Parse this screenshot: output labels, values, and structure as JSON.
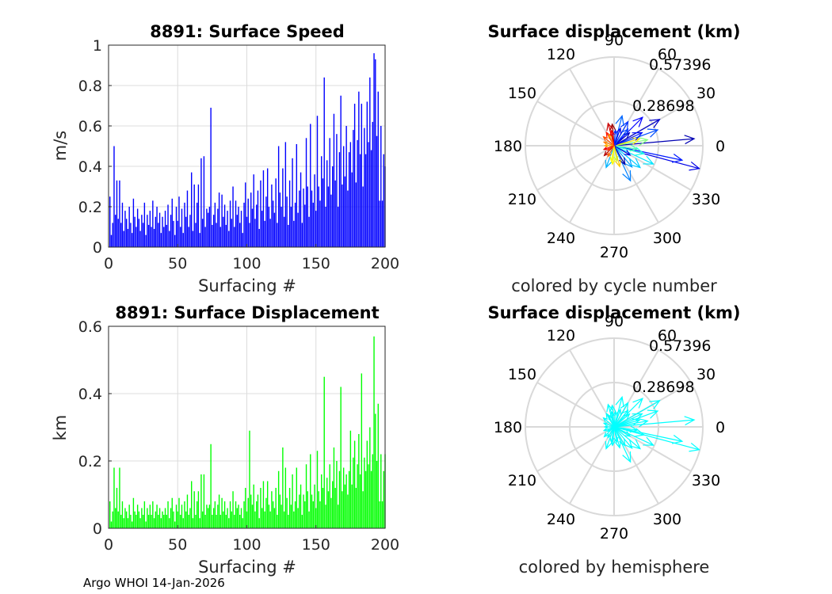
{
  "footer": "Argo WHOI 14-Jan-2026",
  "chart_data": [
    {
      "type": "bar",
      "id": "speed",
      "title": "8891: Surface Speed",
      "xlabel": "Surfacing #",
      "ylabel": "m/s",
      "xlim": [
        0,
        200
      ],
      "ylim": [
        0,
        1
      ],
      "xticks": [
        "0",
        "50",
        "100",
        "150",
        "200"
      ],
      "yticks": [
        "0",
        "0.2",
        "0.4",
        "0.6",
        "0.8",
        "1"
      ],
      "color": "#0000ff",
      "grid": true,
      "x": [
        1,
        2,
        3,
        4,
        5,
        6,
        7,
        8,
        9,
        10,
        11,
        12,
        13,
        14,
        15,
        16,
        17,
        18,
        19,
        20,
        21,
        22,
        23,
        24,
        25,
        26,
        27,
        28,
        29,
        30,
        31,
        32,
        33,
        34,
        35,
        36,
        37,
        38,
        39,
        40,
        41,
        42,
        43,
        44,
        45,
        46,
        47,
        48,
        49,
        50,
        51,
        52,
        53,
        54,
        55,
        56,
        57,
        58,
        59,
        60,
        61,
        62,
        63,
        64,
        65,
        66,
        67,
        68,
        69,
        70,
        71,
        72,
        73,
        74,
        75,
        76,
        77,
        78,
        79,
        80,
        81,
        82,
        83,
        84,
        85,
        86,
        87,
        88,
        89,
        90,
        91,
        92,
        93,
        94,
        95,
        96,
        97,
        98,
        99,
        100,
        101,
        102,
        103,
        104,
        105,
        106,
        107,
        108,
        109,
        110,
        111,
        112,
        113,
        114,
        115,
        116,
        117,
        118,
        119,
        120,
        121,
        122,
        123,
        124,
        125,
        126,
        127,
        128,
        129,
        130,
        131,
        132,
        133,
        134,
        135,
        136,
        137,
        138,
        139,
        140,
        141,
        142,
        143,
        144,
        145,
        146,
        147,
        148,
        149,
        150,
        151,
        152,
        153,
        154,
        155,
        156,
        157,
        158,
        159,
        160,
        161,
        162,
        163,
        164,
        165,
        166,
        167,
        168,
        169,
        170,
        171,
        172,
        173,
        174,
        175,
        176,
        177,
        178,
        179,
        180,
        181,
        182,
        183,
        184,
        185,
        186,
        187,
        188,
        189,
        190,
        191,
        192,
        193,
        194,
        195,
        196,
        197,
        198,
        199,
        200
      ],
      "values": [
        0.25,
        0.06,
        0.12,
        0.5,
        0.16,
        0.33,
        0.14,
        0.33,
        0.12,
        0.22,
        0.08,
        0.18,
        0.14,
        0.09,
        0.2,
        0.12,
        0.07,
        0.24,
        0.15,
        0.1,
        0.19,
        0.14,
        0.08,
        0.16,
        0.12,
        0.22,
        0.06,
        0.16,
        0.11,
        0.18,
        0.1,
        0.23,
        0.09,
        0.15,
        0.2,
        0.12,
        0.17,
        0.07,
        0.15,
        0.1,
        0.18,
        0.11,
        0.21,
        0.08,
        0.16,
        0.24,
        0.13,
        0.06,
        0.2,
        0.13,
        0.25,
        0.1,
        0.19,
        0.07,
        0.22,
        0.15,
        0.28,
        0.1,
        0.16,
        0.37,
        0.08,
        0.31,
        0.12,
        0.22,
        0.31,
        0.07,
        0.44,
        0.14,
        0.45,
        0.1,
        0.19,
        0.17,
        0.2,
        0.69,
        0.11,
        0.16,
        0.22,
        0.12,
        0.19,
        0.27,
        0.1,
        0.26,
        0.15,
        0.21,
        0.11,
        0.18,
        0.08,
        0.23,
        0.14,
        0.3,
        0.1,
        0.23,
        0.16,
        0.2,
        0.12,
        0.18,
        0.07,
        0.22,
        0.32,
        0.15,
        0.24,
        0.12,
        0.27,
        0.19,
        0.36,
        0.14,
        0.21,
        0.28,
        0.09,
        0.33,
        0.18,
        0.38,
        0.13,
        0.25,
        0.39,
        0.2,
        0.14,
        0.31,
        0.23,
        0.17,
        0.34,
        0.12,
        0.5,
        0.27,
        0.2,
        0.39,
        0.15,
        0.52,
        0.25,
        0.11,
        0.33,
        0.2,
        0.44,
        0.13,
        0.22,
        0.51,
        0.17,
        0.28,
        0.37,
        0.12,
        0.29,
        0.21,
        0.54,
        0.3,
        0.15,
        0.61,
        0.28,
        0.22,
        0.36,
        0.18,
        0.65,
        0.3,
        0.23,
        0.45,
        0.34,
        0.84,
        0.2,
        0.43,
        0.3,
        0.54,
        0.26,
        0.4,
        0.66,
        0.33,
        0.56,
        0.2,
        0.47,
        0.75,
        0.31,
        0.5,
        0.35,
        0.6,
        0.28,
        0.47,
        0.52,
        0.37,
        0.58,
        0.71,
        0.32,
        0.53,
        0.77,
        0.46,
        0.71,
        0.3,
        0.59,
        0.46,
        0.72,
        0.52,
        0.84,
        0.48,
        0.62,
        0.96,
        0.93,
        0.55,
        0.77,
        0.23,
        0.6,
        0.23,
        0.46,
        0.4
      ]
    },
    {
      "type": "bar",
      "id": "disp",
      "title": "8891: Surface Displacement",
      "xlabel": "Surfacing #",
      "ylabel": "km",
      "xlim": [
        0,
        200
      ],
      "ylim": [
        0,
        0.6
      ],
      "xticks": [
        "0",
        "50",
        "100",
        "150",
        "200"
      ],
      "yticks": [
        "0",
        "0.2",
        "0.4",
        "0.6"
      ],
      "color": "#00ff00",
      "grid": true,
      "x": [
        1,
        2,
        3,
        4,
        5,
        6,
        7,
        8,
        9,
        10,
        11,
        12,
        13,
        14,
        15,
        16,
        17,
        18,
        19,
        20,
        21,
        22,
        23,
        24,
        25,
        26,
        27,
        28,
        29,
        30,
        31,
        32,
        33,
        34,
        35,
        36,
        37,
        38,
        39,
        40,
        41,
        42,
        43,
        44,
        45,
        46,
        47,
        48,
        49,
        50,
        51,
        52,
        53,
        54,
        55,
        56,
        57,
        58,
        59,
        60,
        61,
        62,
        63,
        64,
        65,
        66,
        67,
        68,
        69,
        70,
        71,
        72,
        73,
        74,
        75,
        76,
        77,
        78,
        79,
        80,
        81,
        82,
        83,
        84,
        85,
        86,
        87,
        88,
        89,
        90,
        91,
        92,
        93,
        94,
        95,
        96,
        97,
        98,
        99,
        100,
        101,
        102,
        103,
        104,
        105,
        106,
        107,
        108,
        109,
        110,
        111,
        112,
        113,
        114,
        115,
        116,
        117,
        118,
        119,
        120,
        121,
        122,
        123,
        124,
        125,
        126,
        127,
        128,
        129,
        130,
        131,
        132,
        133,
        134,
        135,
        136,
        137,
        138,
        139,
        140,
        141,
        142,
        143,
        144,
        145,
        146,
        147,
        148,
        149,
        150,
        151,
        152,
        153,
        154,
        155,
        156,
        157,
        158,
        159,
        160,
        161,
        162,
        163,
        164,
        165,
        166,
        167,
        168,
        169,
        170,
        171,
        172,
        173,
        174,
        175,
        176,
        177,
        178,
        179,
        180,
        181,
        182,
        183,
        184,
        185,
        186,
        187,
        188,
        189,
        190,
        191,
        192,
        193,
        194,
        195,
        196,
        197,
        198,
        199,
        200
      ],
      "values": [
        0.08,
        0.02,
        0.05,
        0.18,
        0.06,
        0.12,
        0.05,
        0.18,
        0.04,
        0.08,
        0.03,
        0.06,
        0.05,
        0.03,
        0.07,
        0.04,
        0.02,
        0.09,
        0.05,
        0.04,
        0.07,
        0.05,
        0.03,
        0.06,
        0.04,
        0.08,
        0.02,
        0.06,
        0.04,
        0.07,
        0.04,
        0.08,
        0.03,
        0.05,
        0.07,
        0.04,
        0.06,
        0.03,
        0.05,
        0.04,
        0.06,
        0.04,
        0.08,
        0.03,
        0.06,
        0.09,
        0.05,
        0.02,
        0.07,
        0.05,
        0.09,
        0.04,
        0.07,
        0.03,
        0.08,
        0.05,
        0.1,
        0.04,
        0.06,
        0.14,
        0.03,
        0.11,
        0.04,
        0.08,
        0.11,
        0.03,
        0.16,
        0.05,
        0.16,
        0.04,
        0.07,
        0.06,
        0.07,
        0.25,
        0.04,
        0.06,
        0.08,
        0.04,
        0.07,
        0.1,
        0.04,
        0.09,
        0.05,
        0.08,
        0.04,
        0.06,
        0.03,
        0.08,
        0.05,
        0.11,
        0.04,
        0.08,
        0.06,
        0.07,
        0.04,
        0.06,
        0.03,
        0.08,
        0.12,
        0.05,
        0.09,
        0.29,
        0.1,
        0.07,
        0.13,
        0.05,
        0.08,
        0.1,
        0.03,
        0.12,
        0.06,
        0.14,
        0.05,
        0.09,
        0.14,
        0.07,
        0.05,
        0.11,
        0.08,
        0.06,
        0.12,
        0.04,
        0.17,
        0.1,
        0.07,
        0.24,
        0.05,
        0.18,
        0.09,
        0.04,
        0.12,
        0.07,
        0.16,
        0.05,
        0.08,
        0.18,
        0.06,
        0.1,
        0.13,
        0.04,
        0.1,
        0.08,
        0.19,
        0.11,
        0.05,
        0.22,
        0.1,
        0.08,
        0.13,
        0.06,
        0.23,
        0.11,
        0.08,
        0.16,
        0.12,
        0.45,
        0.07,
        0.15,
        0.11,
        0.19,
        0.09,
        0.14,
        0.24,
        0.12,
        0.2,
        0.07,
        0.17,
        0.42,
        0.11,
        0.18,
        0.13,
        0.16,
        0.1,
        0.17,
        0.29,
        0.13,
        0.21,
        0.26,
        0.12,
        0.19,
        0.28,
        0.16,
        0.46,
        0.11,
        0.21,
        0.17,
        0.26,
        0.19,
        0.3,
        0.17,
        0.22,
        0.57,
        0.34,
        0.2,
        0.37,
        0.08,
        0.22,
        0.08,
        0.17,
        0.22
      ]
    },
    {
      "type": "polar-compass",
      "id": "polar1",
      "title": "Surface displacement (km)",
      "caption": "colored by cycle number",
      "rmax": 0.57396,
      "rlabels": [
        "0.28698",
        "0.57396"
      ],
      "angle_labels": [
        "0",
        "30",
        "60",
        "90",
        "120",
        "150",
        "180",
        "210",
        "240",
        "270",
        "300",
        "330"
      ],
      "color_mode": "cycle",
      "arrows": [
        {
          "angle": 5,
          "r": 0.52,
          "cycle": 10
        },
        {
          "angle": -15,
          "r": 0.57,
          "cycle": 20
        },
        {
          "angle": -12,
          "r": 0.45,
          "cycle": 30
        },
        {
          "angle": 20,
          "r": 0.3,
          "cycle": 40
        },
        {
          "angle": 30,
          "r": 0.34,
          "cycle": 15
        },
        {
          "angle": 45,
          "r": 0.26,
          "cycle": 25
        },
        {
          "angle": 60,
          "r": 0.18,
          "cycle": 35
        },
        {
          "angle": 75,
          "r": 0.2,
          "cycle": 45
        },
        {
          "angle": 95,
          "r": 0.14,
          "cycle": 195
        },
        {
          "angle": 105,
          "r": 0.15,
          "cycle": 185
        },
        {
          "angle": 120,
          "r": 0.1,
          "cycle": 170
        },
        {
          "angle": 140,
          "r": 0.09,
          "cycle": 160
        },
        {
          "angle": 160,
          "r": 0.07,
          "cycle": 150
        },
        {
          "angle": 180,
          "r": 0.06,
          "cycle": 140
        },
        {
          "angle": 200,
          "r": 0.07,
          "cycle": 178
        },
        {
          "angle": 225,
          "r": 0.09,
          "cycle": 190
        },
        {
          "angle": 250,
          "r": 0.15,
          "cycle": 60
        },
        {
          "angle": 260,
          "r": 0.1,
          "cycle": 120
        },
        {
          "angle": 280,
          "r": 0.1,
          "cycle": 110
        },
        {
          "angle": 295,
          "r": 0.25,
          "cycle": 50
        },
        {
          "angle": 310,
          "r": 0.18,
          "cycle": 55
        },
        {
          "angle": 320,
          "r": 0.22,
          "cycle": 65
        },
        {
          "angle": 335,
          "r": 0.28,
          "cycle": 70
        },
        {
          "angle": 345,
          "r": 0.2,
          "cycle": 80
        },
        {
          "angle": 352,
          "r": 0.15,
          "cycle": 90
        },
        {
          "angle": 10,
          "r": 0.22,
          "cycle": 100
        },
        {
          "angle": 15,
          "r": 0.17,
          "cycle": 130
        },
        {
          "angle": 40,
          "r": 0.13,
          "cycle": 12
        },
        {
          "angle": 70,
          "r": 0.12,
          "cycle": 22
        },
        {
          "angle": 85,
          "r": 0.1,
          "cycle": 33
        },
        {
          "angle": 115,
          "r": 0.08,
          "cycle": 145
        },
        {
          "angle": 215,
          "r": 0.05,
          "cycle": 165
        },
        {
          "angle": 300,
          "r": 0.14,
          "cycle": 8
        },
        {
          "angle": 330,
          "r": 0.12,
          "cycle": 18
        },
        {
          "angle": 25,
          "r": 0.2,
          "cycle": 28
        },
        {
          "angle": 50,
          "r": 0.14,
          "cycle": 38
        },
        {
          "angle": 100,
          "r": 0.1,
          "cycle": 175
        },
        {
          "angle": 265,
          "r": 0.12,
          "cycle": 125
        },
        {
          "angle": 285,
          "r": 0.14,
          "cycle": 135
        },
        {
          "angle": 240,
          "r": 0.08,
          "cycle": 155
        }
      ]
    },
    {
      "type": "polar-compass",
      "id": "polar2",
      "title": "Surface displacement (km)",
      "caption": "colored by hemisphere",
      "rmax": 0.57396,
      "rlabels": [
        "0.28698",
        "0.57396"
      ],
      "angle_labels": [
        "0",
        "30",
        "60",
        "90",
        "120",
        "150",
        "180",
        "210",
        "240",
        "270",
        "300",
        "330"
      ],
      "color_mode": "hemisphere",
      "color": "#00ffff",
      "arrows": [
        {
          "angle": 5,
          "r": 0.52
        },
        {
          "angle": -15,
          "r": 0.57
        },
        {
          "angle": -12,
          "r": 0.45
        },
        {
          "angle": 20,
          "r": 0.3
        },
        {
          "angle": 30,
          "r": 0.34
        },
        {
          "angle": 45,
          "r": 0.26
        },
        {
          "angle": 60,
          "r": 0.18
        },
        {
          "angle": 75,
          "r": 0.2
        },
        {
          "angle": 95,
          "r": 0.14
        },
        {
          "angle": 105,
          "r": 0.15
        },
        {
          "angle": 120,
          "r": 0.1
        },
        {
          "angle": 140,
          "r": 0.09
        },
        {
          "angle": 160,
          "r": 0.07
        },
        {
          "angle": 180,
          "r": 0.06
        },
        {
          "angle": 200,
          "r": 0.07
        },
        {
          "angle": 225,
          "r": 0.09
        },
        {
          "angle": 250,
          "r": 0.15
        },
        {
          "angle": 260,
          "r": 0.1
        },
        {
          "angle": 280,
          "r": 0.1
        },
        {
          "angle": 295,
          "r": 0.25
        },
        {
          "angle": 310,
          "r": 0.18
        },
        {
          "angle": 320,
          "r": 0.22
        },
        {
          "angle": 335,
          "r": 0.28
        },
        {
          "angle": 345,
          "r": 0.2
        },
        {
          "angle": 352,
          "r": 0.15
        },
        {
          "angle": 10,
          "r": 0.22
        },
        {
          "angle": 15,
          "r": 0.17
        },
        {
          "angle": 40,
          "r": 0.13
        },
        {
          "angle": 70,
          "r": 0.12
        },
        {
          "angle": 85,
          "r": 0.1
        },
        {
          "angle": 115,
          "r": 0.08
        },
        {
          "angle": 215,
          "r": 0.05
        },
        {
          "angle": 300,
          "r": 0.14
        },
        {
          "angle": 330,
          "r": 0.12
        },
        {
          "angle": 25,
          "r": 0.2
        },
        {
          "angle": 50,
          "r": 0.14
        },
        {
          "angle": 100,
          "r": 0.1
        },
        {
          "angle": 265,
          "r": 0.12
        },
        {
          "angle": 285,
          "r": 0.14
        },
        {
          "angle": 240,
          "r": 0.08
        }
      ]
    }
  ]
}
